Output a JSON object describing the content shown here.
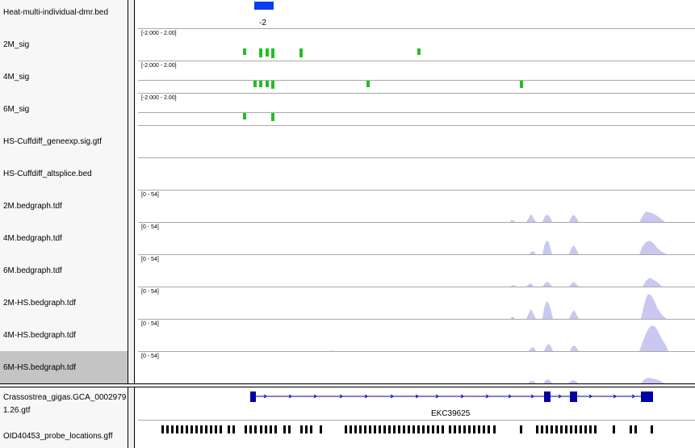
{
  "tracks": [
    {
      "name": "Heat-multi-individual-dmr.bed"
    },
    {
      "name": "2M_sig",
      "range": "[-2.000 - 2.00]"
    },
    {
      "name": "4M_sig",
      "range": "[-2.000 - 2.00]"
    },
    {
      "name": "6M_sig",
      "range": "[-2.000 - 2.00]"
    },
    {
      "name": "HS-Cuffdiff_geneexp.sig.gtf"
    },
    {
      "name": "HS-Cuffdiff_altsplice.bed"
    },
    {
      "name": "2M.bedgraph.tdf",
      "range": "[0 - 54]"
    },
    {
      "name": "4M.bedgraph.tdf",
      "range": "[0 - 54]"
    },
    {
      "name": "6M.bedgraph.tdf",
      "range": "[0 - 54]"
    },
    {
      "name": "2M-HS.bedgraph.tdf",
      "range": "[0 - 54]"
    },
    {
      "name": "4M-HS.bedgraph.tdf",
      "range": "[0 - 54]"
    },
    {
      "name": "6M-HS.bedgraph.tdf",
      "range": "[0 - 54]",
      "selected": true
    }
  ],
  "feature_tracks": {
    "gene_track_name_line1": "Crassostrea_gigas.GCA_0002979",
    "gene_track_name_line2": "1.26.gtf",
    "probe_track_name": "OID40453_probe_locations.gff"
  },
  "dmr_feature_label": "-2",
  "gene_name": "EKC39625",
  "colors": {
    "dmr": "#0a3cf0",
    "sig": "#22c022",
    "coverage": "#c8c8f0",
    "gene": "#0000a8",
    "probe": "#000000",
    "selected_row": "#c4c4c4"
  }
}
